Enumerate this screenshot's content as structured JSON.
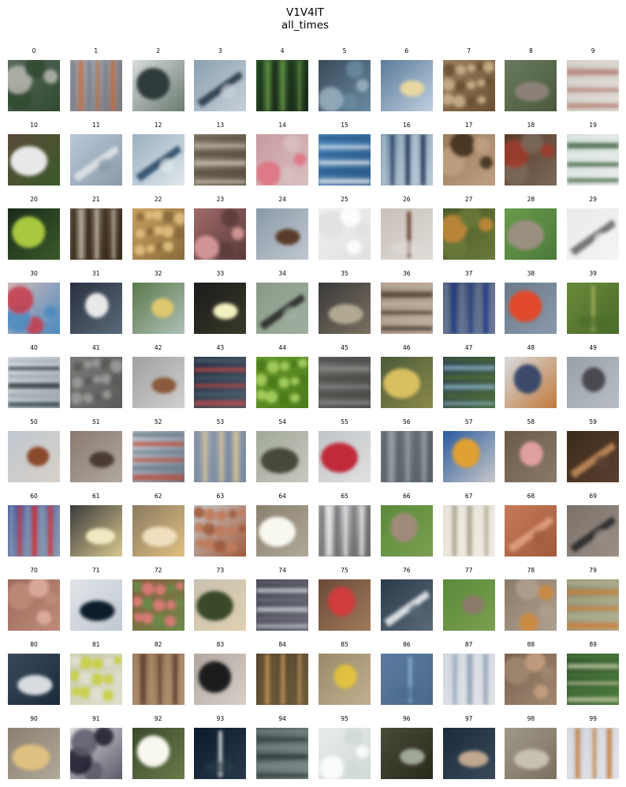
{
  "figure": {
    "title": "V1V4IT",
    "subtitle": "all_times"
  },
  "thumbnails": [
    {
      "label": "0",
      "bg": "#5a6a5f",
      "fg": "#b8b8b0",
      "alt": "#2f4a2f",
      "shape": "blob"
    },
    {
      "label": "1",
      "bg": "#9fb0c0",
      "fg": "#c86a3a",
      "alt": "#7a7a80",
      "shape": "vstripe"
    },
    {
      "label": "2",
      "bg": "#d8dcdc",
      "fg": "#2f3a3a",
      "alt": "#6a7a70",
      "shape": "ellipse"
    },
    {
      "label": "3",
      "bg": "#8aa0b0",
      "fg": "#2a3a4a",
      "alt": "#c8d0d8",
      "shape": "diag"
    },
    {
      "label": "4",
      "bg": "#2f5a2a",
      "fg": "#6a9a4a",
      "alt": "#1a2a1a",
      "shape": "vstripe"
    },
    {
      "label": "5",
      "bg": "#3a4a5a",
      "fg": "#9ab0c0",
      "alt": "#6a8aa0",
      "shape": "blob"
    },
    {
      "label": "6",
      "bg": "#5a7a9a",
      "fg": "#e8d8a0",
      "alt": "#c0d0e0",
      "shape": "ellipse"
    },
    {
      "label": "7",
      "bg": "#9a8060",
      "fg": "#c8b088",
      "alt": "#6a5030",
      "shape": "dots"
    },
    {
      "label": "8",
      "bg": "#6a7a60",
      "fg": "#8a8078",
      "alt": "#4a5a3a",
      "shape": "ellipse"
    },
    {
      "label": "9",
      "bg": "#c8c0b8",
      "fg": "#b07a6a",
      "alt": "#e0dcd8",
      "shape": "hstripe"
    },
    {
      "label": "10",
      "bg": "#5a4a3a",
      "fg": "#e8e8e8",
      "alt": "#3a5a2a",
      "shape": "ellipse"
    },
    {
      "label": "11",
      "bg": "#b8c8d8",
      "fg": "#e0e4e8",
      "alt": "#8a9aa8",
      "shape": "diag"
    },
    {
      "label": "12",
      "bg": "#9ab0c0",
      "fg": "#2a4a6a",
      "alt": "#e0e8ec",
      "shape": "diag"
    },
    {
      "label": "13",
      "bg": "#8a8070",
      "fg": "#c8c0b0",
      "alt": "#5a5040",
      "shape": "hstripe"
    },
    {
      "label": "14",
      "bg": "#c89aa0",
      "fg": "#e07080",
      "alt": "#d8c0c0",
      "shape": "blob"
    },
    {
      "label": "15",
      "bg": "#4a8ac0",
      "fg": "#e8e8e8",
      "alt": "#2a5a8a",
      "shape": "hstripe"
    },
    {
      "label": "16",
      "bg": "#6a8aa0",
      "fg": "#1a2a4a",
      "alt": "#b8c8d8",
      "shape": "vstripe"
    },
    {
      "label": "17",
      "bg": "#9a7a5a",
      "fg": "#3a2a1a",
      "alt": "#c0a080",
      "shape": "blob"
    },
    {
      "label": "18",
      "bg": "#5a3a2a",
      "fg": "#a03a2a",
      "alt": "#7a6a5a",
      "shape": "blob"
    },
    {
      "label": "19",
      "bg": "#c8d8d0",
      "fg": "#3a5a3a",
      "alt": "#e8ecec",
      "shape": "hstripe"
    },
    {
      "label": "20",
      "bg": "#1a2a1a",
      "fg": "#a8c840",
      "alt": "#3a5a2a",
      "shape": "ellipse"
    },
    {
      "label": "21",
      "bg": "#6a5a4a",
      "fg": "#c8c0b0",
      "alt": "#3a2a1a",
      "shape": "vstripe"
    },
    {
      "label": "22",
      "bg": "#c8a060",
      "fg": "#e0c080",
      "alt": "#8a6a3a",
      "shape": "dots"
    },
    {
      "label": "23",
      "bg": "#a06a6a",
      "fg": "#e0a0a0",
      "alt": "#5a3a3a",
      "shape": "blob"
    },
    {
      "label": "24",
      "bg": "#8a9aa8",
      "fg": "#5a3a2a",
      "alt": "#c0c8d0",
      "shape": "ellipse"
    },
    {
      "label": "25",
      "bg": "#f0f0f0",
      "fg": "#ffffff",
      "alt": "#e0e0e0",
      "shape": "blob"
    },
    {
      "label": "26",
      "bg": "#c8c0b8",
      "fg": "#5a2a1a",
      "alt": "#e0dcd8",
      "shape": "vline"
    },
    {
      "label": "27",
      "bg": "#4a5a2a",
      "fg": "#c88a3a",
      "alt": "#6a7a3a",
      "shape": "blob"
    },
    {
      "label": "28",
      "bg": "#6a9a4a",
      "fg": "#9a9080",
      "alt": "#4a7a3a",
      "shape": "ellipse"
    },
    {
      "label": "29",
      "bg": "#e8eaec",
      "fg": "#6a6a6a",
      "alt": "#f4f4f4",
      "shape": "diag"
    },
    {
      "label": "30",
      "bg": "#d0b8b8",
      "fg": "#c83a4a",
      "alt": "#4a8ac0",
      "shape": "blob"
    },
    {
      "label": "31",
      "bg": "#2a3040",
      "fg": "#e8e8e8",
      "alt": "#5a6a7a",
      "shape": "ellipse"
    },
    {
      "label": "32",
      "bg": "#5a7a4a",
      "fg": "#e0c870",
      "alt": "#b0c0b8",
      "shape": "ellipse"
    },
    {
      "label": "33",
      "bg": "#1a1a1a",
      "fg": "#f0f0c0",
      "alt": "#3a3a2a",
      "shape": "ellipse"
    },
    {
      "label": "34",
      "bg": "#8a9a88",
      "fg": "#2a2a2a",
      "alt": "#a0b0a0",
      "shape": "diag"
    },
    {
      "label": "35",
      "bg": "#3a3a3a",
      "fg": "#b0a890",
      "alt": "#7a7060",
      "shape": "ellipse"
    },
    {
      "label": "36",
      "bg": "#9a8a7a",
      "fg": "#4a3a2a",
      "alt": "#c0b0a0",
      "shape": "hstripe"
    },
    {
      "label": "37",
      "bg": "#3a4a6a",
      "fg": "#1a3a8a",
      "alt": "#6a7a9a",
      "shape": "vstripe"
    },
    {
      "label": "38",
      "bg": "#6a7a8a",
      "fg": "#e04a2a",
      "alt": "#8a9aaa",
      "shape": "ellipse"
    },
    {
      "label": "39",
      "bg": "#6a8a3a",
      "fg": "#a0b060",
      "alt": "#4a6a2a",
      "shape": "vline"
    },
    {
      "label": "40",
      "bg": "#e0e4e8",
      "fg": "#1a2a2a",
      "alt": "#a0a8b0",
      "shape": "hstripe"
    },
    {
      "label": "41",
      "bg": "#7a7a78",
      "fg": "#9a9a98",
      "alt": "#5a5a58",
      "shape": "dots"
    },
    {
      "label": "42",
      "bg": "#a0a0a0",
      "fg": "#8a5a3a",
      "alt": "#d0d0d0",
      "shape": "ellipse"
    },
    {
      "label": "43",
      "bg": "#1a2a3a",
      "fg": "#c04a4a",
      "alt": "#4a5a6a",
      "shape": "hstripe"
    },
    {
      "label": "44",
      "bg": "#6a9a2a",
      "fg": "#a8d060",
      "alt": "#4a7a1a",
      "shape": "dots"
    },
    {
      "label": "45",
      "bg": "#6a6a68",
      "fg": "#8a8a88",
      "alt": "#4a4a48",
      "shape": "hstripe"
    },
    {
      "label": "46",
      "bg": "#4a5a3a",
      "fg": "#d8c060",
      "alt": "#8a8a4a",
      "shape": "ellipse"
    },
    {
      "label": "47",
      "bg": "#2a3a4a",
      "fg": "#8ab0c8",
      "alt": "#4a6a3a",
      "shape": "hstripe"
    },
    {
      "label": "48",
      "bg": "#d8dce0",
      "fg": "#3a4a6a",
      "alt": "#c07a3a",
      "shape": "ellipse"
    },
    {
      "label": "49",
      "bg": "#9aa0a8",
      "fg": "#4a4a50",
      "alt": "#b8bec4",
      "shape": "ellipse"
    },
    {
      "label": "50",
      "bg": "#c0c8d0",
      "fg": "#8a4a2a",
      "alt": "#d8d0c8",
      "shape": "ellipse"
    },
    {
      "label": "51",
      "bg": "#8a7a70",
      "fg": "#4a3a30",
      "alt": "#b0a8a0",
      "shape": "ellipse"
    },
    {
      "label": "52",
      "bg": "#c8d0d8",
      "fg": "#c04a3a",
      "alt": "#6a7a8a",
      "shape": "hstripe"
    },
    {
      "label": "53",
      "bg": "#a0a8b0",
      "fg": "#e0c890",
      "alt": "#7a8aa0",
      "shape": "vstripe"
    },
    {
      "label": "54",
      "bg": "#a0a898",
      "fg": "#4a4a3a",
      "alt": "#c8c8c0",
      "shape": "ellipse"
    },
    {
      "label": "55",
      "bg": "#c0c4c8",
      "fg": "#c02a3a",
      "alt": "#e0e0e0",
      "shape": "ellipse"
    },
    {
      "label": "56",
      "bg": "#7a8088",
      "fg": "#a0a8b0",
      "alt": "#5a6068",
      "shape": "vstripe"
    },
    {
      "label": "57",
      "bg": "#2a5aa0",
      "fg": "#e0a030",
      "alt": "#c8c8c8",
      "shape": "ellipse"
    },
    {
      "label": "58",
      "bg": "#6a5a4a",
      "fg": "#e0a0a0",
      "alt": "#8a7a6a",
      "shape": "ellipse"
    },
    {
      "label": "59",
      "bg": "#3a2a1a",
      "fg": "#c08a5a",
      "alt": "#5a4030",
      "shape": "diag"
    },
    {
      "label": "60",
      "bg": "#4a5aa0",
      "fg": "#e02a2a",
      "alt": "#8a9ab0",
      "shape": "vstripe"
    },
    {
      "label": "61",
      "bg": "#3a3a3a",
      "fg": "#f0e8c0",
      "alt": "#d8c890",
      "shape": "ellipse"
    },
    {
      "label": "62",
      "bg": "#8a7a60",
      "fg": "#f0e0c0",
      "alt": "#e0c080",
      "shape": "ellipse"
    },
    {
      "label": "63",
      "bg": "#c8ccd0",
      "fg": "#c07a5a",
      "alt": "#a05a3a",
      "shape": "dots"
    },
    {
      "label": "64",
      "bg": "#8a8070",
      "fg": "#f8f8f0",
      "alt": "#b0a898",
      "shape": "ellipse"
    },
    {
      "label": "65",
      "bg": "#c0c4c8",
      "fg": "#f0f0f0",
      "alt": "#6a6a6a",
      "shape": "vstripe"
    },
    {
      "label": "66",
      "bg": "#5a8a3a",
      "fg": "#a08a7a",
      "alt": "#7aa050",
      "shape": "ellipse"
    },
    {
      "label": "67",
      "bg": "#e0dcd0",
      "fg": "#a09a80",
      "alt": "#f0ece4",
      "shape": "vstripe"
    },
    {
      "label": "68",
      "bg": "#c87a5a",
      "fg": "#e0a080",
      "alt": "#a05a3a",
      "shape": "diag"
    },
    {
      "label": "69",
      "bg": "#7a7068",
      "fg": "#2a2a2a",
      "alt": "#9a9088",
      "shape": "diag"
    },
    {
      "label": "70",
      "bg": "#9a6a5a",
      "fg": "#e0b0a0",
      "alt": "#c08a7a",
      "shape": "blob"
    },
    {
      "label": "71",
      "bg": "#e0e4e8",
      "fg": "#0a1a2a",
      "alt": "#c0c8d0",
      "shape": "ellipse"
    },
    {
      "label": "72",
      "bg": "#8a5a3a",
      "fg": "#e07a7a",
      "alt": "#6a8a4a",
      "shape": "dots"
    },
    {
      "label": "73",
      "bg": "#c8c0b0",
      "fg": "#3a4a2a",
      "alt": "#e0d0b0",
      "shape": "ellipse"
    },
    {
      "label": "74",
      "bg": "#3a3a48",
      "fg": "#d0d4d8",
      "alt": "#6a6a78",
      "shape": "hstripe"
    },
    {
      "label": "75",
      "bg": "#6a4a3a",
      "fg": "#d03a3a",
      "alt": "#a07a5a",
      "shape": "ellipse"
    },
    {
      "label": "76",
      "bg": "#2a3a48",
      "fg": "#e8ecf0",
      "alt": "#5a6a78",
      "shape": "diag"
    },
    {
      "label": "77",
      "bg": "#5a8a3a",
      "fg": "#8a7a6a",
      "alt": "#7aa050",
      "shape": "ellipse"
    },
    {
      "label": "78",
      "bg": "#8a7a6a",
      "fg": "#d08a3a",
      "alt": "#b0a090",
      "shape": "blob"
    },
    {
      "label": "79",
      "bg": "#8a8a6a",
      "fg": "#d07a3a",
      "alt": "#b0b090",
      "shape": "hstripe"
    },
    {
      "label": "80",
      "bg": "#3a4a5a",
      "fg": "#d8dce0",
      "alt": "#1a2a3a",
      "shape": "ellipse"
    },
    {
      "label": "81",
      "bg": "#c8c8a8",
      "fg": "#c8d040",
      "alt": "#e0e0d0",
      "shape": "dots"
    },
    {
      "label": "82",
      "bg": "#8a6a4a",
      "fg": "#5a3a2a",
      "alt": "#b09070",
      "shape": "vstripe"
    },
    {
      "label": "83",
      "bg": "#b0a8a0",
      "fg": "#1a1a1a",
      "alt": "#d8d0c8",
      "shape": "ellipse"
    },
    {
      "label": "84",
      "bg": "#4a3a2a",
      "fg": "#c89a5a",
      "alt": "#6a5a3a",
      "shape": "vstripe"
    },
    {
      "label": "85",
      "bg": "#9a8a6a",
      "fg": "#e0c040",
      "alt": "#c0b090",
      "shape": "ellipse"
    },
    {
      "label": "86",
      "bg": "#5a7aa0",
      "fg": "#8ab0d0",
      "alt": "#4a6a8a",
      "shape": "vline"
    },
    {
      "label": "87",
      "bg": "#c8d0d8",
      "fg": "#8a9ab0",
      "alt": "#e0e4e8",
      "shape": "vstripe"
    },
    {
      "label": "88",
      "bg": "#7a6050",
      "fg": "#c8a080",
      "alt": "#a08870",
      "shape": "blob"
    },
    {
      "label": "89",
      "bg": "#2a4a2a",
      "fg": "#c0c8a0",
      "alt": "#4a7a3a",
      "shape": "hstripe"
    },
    {
      "label": "90",
      "bg": "#8a8070",
      "fg": "#e0c080",
      "alt": "#b0a898",
      "shape": "ellipse"
    },
    {
      "label": "91",
      "bg": "#e0e0e0",
      "fg": "#1a1a2a",
      "alt": "#5a5a6a",
      "shape": "blob"
    },
    {
      "label": "92",
      "bg": "#3a4a2a",
      "fg": "#f8f8f0",
      "alt": "#6a7a4a",
      "shape": "ellipse"
    },
    {
      "label": "93",
      "bg": "#0a1a2a",
      "fg": "#e8e8e8",
      "alt": "#2a3a4a",
      "shape": "vline"
    },
    {
      "label": "94",
      "bg": "#4a5a58",
      "fg": "#2a3a38",
      "alt": "#7a8a88",
      "shape": "hstripe"
    },
    {
      "label": "95",
      "bg": "#e8ecec",
      "fg": "#ffffff",
      "alt": "#d0d8d8",
      "shape": "blob"
    },
    {
      "label": "96",
      "bg": "#4a4a3a",
      "fg": "#a0a898",
      "alt": "#2a2a1a",
      "shape": "ellipse"
    },
    {
      "label": "97",
      "bg": "#1a2a3a",
      "fg": "#c0a890",
      "alt": "#3a4a5a",
      "shape": "ellipse"
    },
    {
      "label": "98",
      "bg": "#a09888",
      "fg": "#c8c0b0",
      "alt": "#7a7060",
      "shape": "ellipse"
    },
    {
      "label": "99",
      "bg": "#c8ccd0",
      "fg": "#c07a3a",
      "alt": "#e0e4e8",
      "shape": "vstripe"
    }
  ]
}
